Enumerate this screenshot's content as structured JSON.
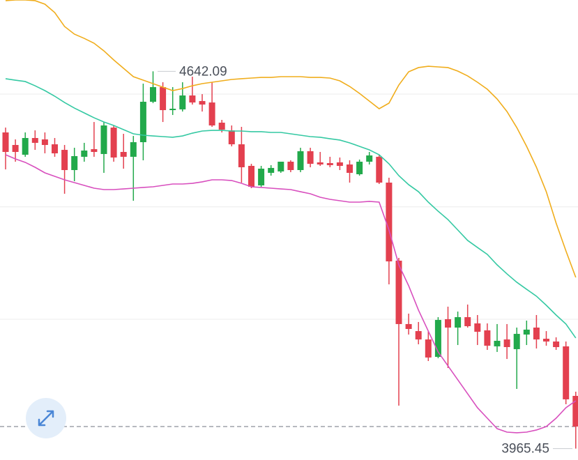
{
  "chart_data": {
    "type": "candlestick",
    "ylim": [
      3945,
      4770
    ],
    "grid_lines": [
      4601.2,
      4399,
      4197.5
    ],
    "last_price": 4005,
    "high_marker": 4642.09,
    "low_marker": 3965.45,
    "up_color": "#22a94b",
    "down_color": "#e3404f",
    "open": [
      4532.5,
      4510,
      4492.5,
      4522.5,
      4520,
      4511.2,
      4501.2,
      4465,
      4488.8,
      4502.5,
      4493.8,
      4541.2,
      4497.5,
      4488.8,
      4515,
      4587.5,
      4613.8,
      4572.5,
      4573.8,
      4598.8,
      4588.8,
      4586.2,
      4550,
      4536.2,
      4511.2,
      4472.5,
      4437.5,
      4460,
      4462.5,
      4480,
      4465,
      4498.8,
      4478.8,
      4477.5,
      4478.8,
      4475,
      4457.5,
      4480,
      4488.8,
      4442.5,
      4302.5,
      4188.8,
      4176.2,
      4161.2,
      4130,
      4197.5,
      4182.5,
      4201.2,
      4190,
      4177.5,
      4148.8,
      4161.2,
      4143.8,
      4170,
      4182.5,
      4162.5,
      4157.5,
      4148.8,
      4060
    ],
    "high": [
      4541.2,
      4520,
      4532.5,
      4536.2,
      4532.5,
      4522.5,
      4510,
      4505,
      4513.8,
      4551.2,
      4551.2,
      4545,
      4530,
      4526.2,
      4620,
      4642.09,
      4622.5,
      4613.8,
      4622.5,
      4632.5,
      4601.2,
      4622.5,
      4555,
      4545,
      4542.5,
      4476.2,
      4472.5,
      4473.8,
      4480,
      4482.5,
      4505,
      4505,
      4497.5,
      4488.8,
      4487.5,
      4482.5,
      4483.8,
      4497.5,
      4492.5,
      4451.2,
      4307.5,
      4207.5,
      4192.5,
      4176.2,
      4201.2,
      4220,
      4211.2,
      4223.8,
      4205,
      4190,
      4188.8,
      4188.8,
      4182.5,
      4195,
      4205,
      4176.2,
      4165,
      4157.5,
      4067.5
    ],
    "low": [
      4466.2,
      4480,
      4488.8,
      4501.2,
      4495,
      4488.8,
      4422.5,
      4445,
      4480,
      4488.8,
      4460,
      4480,
      4467.5,
      4410,
      4482.5,
      4585,
      4551.2,
      4563.8,
      4570,
      4582.5,
      4570,
      4542.5,
      4532.5,
      4507.5,
      4442.5,
      4432.5,
      4435,
      4455,
      4460,
      4461.2,
      4461.2,
      4470,
      4472.5,
      4470,
      4465,
      4442.5,
      4455,
      4475,
      4440,
      4260,
      4042.5,
      4170,
      4152.5,
      4122.5,
      4127.5,
      4110,
      4151.2,
      4182.5,
      4151.2,
      4142.5,
      4138.8,
      4126.2,
      4072.5,
      4151.2,
      4145,
      4150,
      4142.5,
      4045,
      3965.45
    ],
    "close": [
      4497.5,
      4497.5,
      4522.5,
      4513.8,
      4510,
      4495,
      4465,
      4490,
      4500,
      4497.5,
      4545,
      4487.5,
      4488.8,
      4515,
      4587.5,
      4613.8,
      4572.5,
      4575,
      4598.8,
      4586.2,
      4582.5,
      4545,
      4537.5,
      4511.2,
      4470,
      4435,
      4467.5,
      4468.8,
      4480,
      4465,
      4498.8,
      4476.2,
      4475,
      4473.8,
      4472.5,
      4460,
      4480,
      4491.2,
      4442.5,
      4301.2,
      4188.8,
      4180,
      4161.2,
      4128.8,
      4196.2,
      4182.5,
      4201.2,
      4185,
      4175,
      4150,
      4158.8,
      4147.5,
      4171.2,
      4178.8,
      4161.2,
      4157.5,
      4147.5,
      4053.8,
      4005
    ],
    "bands": [
      {
        "color": "#f0ad1c",
        "values": [
          4768.8,
          4770,
          4770,
          4768.8,
          4762.5,
          4747.5,
          4722.5,
          4708.8,
          4701.2,
          4692.5,
          4678.8,
          4662.5,
          4647.5,
          4632.5,
          4626.2,
          4620,
          4613.8,
          4607.5,
          4611.2,
          4616.2,
          4620,
          4622.5,
          4625,
          4627.5,
          4628.8,
          4630,
          4631.2,
          4631.2,
          4632.5,
          4632.5,
          4632.5,
          4631.2,
          4631.2,
          4630,
          4625,
          4615,
          4602.5,
          4588.8,
          4575,
          4585,
          4617.5,
          4641.2,
          4648.8,
          4651.2,
          4650,
          4648.8,
          4642.5,
          4633.8,
          4622.5,
          4610,
          4592.5,
          4570,
          4541.2,
          4507.5,
          4470,
          4426.2,
          4370,
          4320,
          4272.5
        ]
      },
      {
        "color": "#35c9a3",
        "values": [
          4628.8,
          4626.2,
          4623.8,
          4616.2,
          4607.5,
          4597.5,
          4586.2,
          4576.2,
          4567.5,
          4558.8,
          4551.2,
          4545,
          4537.5,
          4530,
          4527.5,
          4526.2,
          4525,
          4523.8,
          4526.2,
          4531.2,
          4535,
          4536.2,
          4536.2,
          4535,
          4535,
          4533.8,
          4533.8,
          4532.5,
          4532.5,
          4530,
          4527.5,
          4525,
          4523.8,
          4521.2,
          4518.8,
          4513.8,
          4507.5,
          4501.2,
          4492.5,
          4476.2,
          4455,
          4438.8,
          4426.2,
          4407.5,
          4391.2,
          4376.2,
          4357.5,
          4338.8,
          4326.2,
          4313.8,
          4295,
          4278.8,
          4263.8,
          4251.2,
          4238.8,
          4222.5,
          4205,
          4188.8,
          4163.8
        ]
      },
      {
        "color": "#d84fbe",
        "values": [
          4492.5,
          4485,
          4478.8,
          4470,
          4460,
          4453.8,
          4447.5,
          4442.5,
          4437.5,
          4432.5,
          4430,
          4430,
          4431.2,
          4432.5,
          4433.8,
          4435,
          4437.5,
          4440,
          4440,
          4441.2,
          4443.8,
          4447.5,
          4447.5,
          4446.2,
          4441.2,
          4435,
          4433.8,
          4432.5,
          4431.2,
          4430,
          4426.2,
          4422.5,
          4416.2,
          4412.5,
          4410,
          4407.5,
          4407.5,
          4408.8,
          4407.5,
          4357.5,
          4295,
          4257.5,
          4213.8,
          4176.2,
          4138.8,
          4113.8,
          4088.8,
          4063.8,
          4038.8,
          4020,
          4001.2,
          3995,
          3993.8,
          3995,
          3998.8,
          4005,
          4020,
          4038.8,
          4051.2
        ]
      }
    ]
  }
}
